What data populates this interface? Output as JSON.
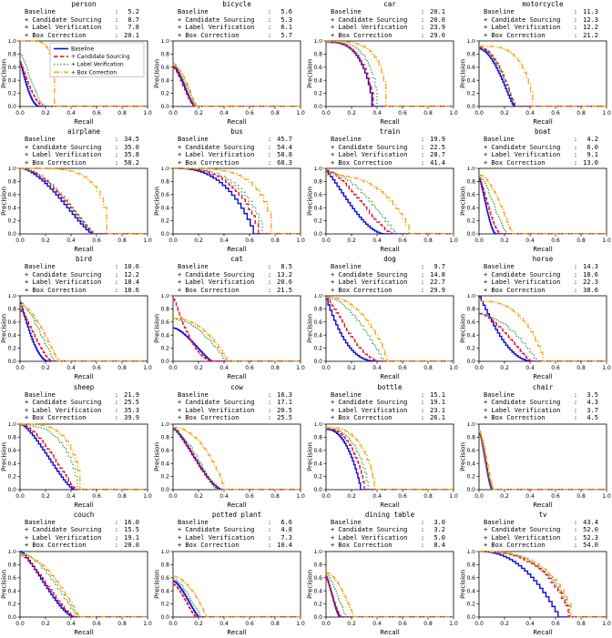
{
  "figure": {
    "xlabel": "Recall",
    "ylabel": "Precision",
    "x_ticks": [
      "0.0",
      "0.2",
      "0.4",
      "0.6",
      "0.8",
      "1.0"
    ],
    "y_ticks": [
      "0.0",
      "0.2",
      "0.4",
      "0.6",
      "0.8",
      "1.0"
    ],
    "xlim": [
      0,
      1
    ],
    "ylim": [
      0,
      1
    ],
    "grid": "off",
    "legend_position": "inside-first-subplot-upper-right"
  },
  "methods": [
    {
      "name": "Baseline",
      "color": "#0b0bd6",
      "dash": "",
      "style": "solid"
    },
    {
      "name": "+ Candidate Sourcing",
      "color": "#e8112d",
      "dash": "4.5,2.5",
      "style": "dashed"
    },
    {
      "name": "+ Label Verification",
      "color": "#259b41",
      "dash": "1.2,2.4",
      "style": "dotted"
    },
    {
      "name": "+ Box Correction",
      "color": "#ffa519",
      "dash": "6,2,1.2,2",
      "style": "dashdot"
    }
  ],
  "chart_data": [
    {
      "type": "line",
      "title": "person",
      "xlabel": "Recall",
      "ylabel": "Precision",
      "xlim": [
        0,
        1
      ],
      "ylim": [
        0,
        1
      ],
      "ap": [
        5.2,
        8.7,
        7.8,
        20.1
      ],
      "curves": [
        [
          0.68,
          0.155,
          1.1,
          2.2
        ],
        [
          0.66,
          0.19,
          1.2,
          2.0
        ],
        [
          0.8,
          0.2,
          1.3,
          1.8
        ],
        [
          1.0,
          0.27,
          6,
          0.45
        ]
      ]
    },
    {
      "type": "line",
      "title": "bicycle",
      "xlabel": "Recall",
      "ylabel": "Precision",
      "xlim": [
        0,
        1
      ],
      "ylim": [
        0,
        1
      ],
      "ap": [
        5.6,
        5.3,
        6.1,
        5.7
      ],
      "curves": [
        [
          0.62,
          0.17,
          1.5,
          1.5
        ],
        [
          0.6,
          0.17,
          1.4,
          1.6
        ],
        [
          0.66,
          0.19,
          1.5,
          1.5
        ],
        [
          0.63,
          0.18,
          1.8,
          1.2
        ]
      ]
    },
    {
      "type": "line",
      "title": "car",
      "xlabel": "Recall",
      "ylabel": "Precision",
      "xlim": [
        0,
        1
      ],
      "ylim": [
        0,
        1
      ],
      "ap": [
        20.1,
        20.0,
        23.9,
        29.0
      ],
      "curves": [
        [
          0.98,
          0.36,
          3,
          0.7
        ],
        [
          0.98,
          0.37,
          3,
          0.7
        ],
        [
          0.98,
          0.4,
          3.5,
          0.6
        ],
        [
          0.99,
          0.47,
          4,
          0.5
        ]
      ]
    },
    {
      "type": "line",
      "title": "motorcycle",
      "xlabel": "Recall",
      "ylabel": "Precision",
      "xlim": [
        0,
        1
      ],
      "ylim": [
        0,
        1
      ],
      "ap": [
        11.3,
        12.3,
        12.2,
        21.2
      ],
      "curves": [
        [
          0.88,
          0.27,
          1.8,
          1.2
        ],
        [
          0.9,
          0.28,
          2,
          1.1
        ],
        [
          0.88,
          0.28,
          2,
          1.1
        ],
        [
          0.92,
          0.42,
          3.5,
          0.7
        ]
      ]
    },
    {
      "type": "line",
      "title": "airplane",
      "xlabel": "Recall",
      "ylabel": "Precision",
      "xlim": [
        0,
        1
      ],
      "ylim": [
        0,
        1
      ],
      "ap": [
        34.5,
        35.0,
        35.8,
        58.2
      ],
      "curves": [
        [
          1.0,
          0.56,
          1.6,
          1.3
        ],
        [
          1.0,
          0.57,
          1.7,
          1.2
        ],
        [
          1.0,
          0.57,
          1.8,
          1.2
        ],
        [
          1.0,
          0.68,
          4.5,
          0.5
        ]
      ]
    },
    {
      "type": "line",
      "title": "bus",
      "xlabel": "Recall",
      "ylabel": "Precision",
      "xlim": [
        0,
        1
      ],
      "ylim": [
        0,
        1
      ],
      "ap": [
        45.7,
        54.4,
        58.8,
        68.3
      ],
      "curves": [
        [
          1.0,
          0.63,
          2.6,
          0.9
        ],
        [
          1.0,
          0.67,
          2.8,
          0.8
        ],
        [
          1.0,
          0.7,
          3.0,
          0.75
        ],
        [
          1.0,
          0.77,
          4.0,
          0.55
        ]
      ]
    },
    {
      "type": "line",
      "title": "train",
      "xlabel": "Recall",
      "ylabel": "Precision",
      "xlim": [
        0,
        1
      ],
      "ylim": [
        0,
        1
      ],
      "ap": [
        19.9,
        22.5,
        28.7,
        41.4
      ],
      "curves": [
        [
          0.95,
          0.45,
          1.2,
          1.8
        ],
        [
          0.97,
          0.52,
          1.5,
          1.5
        ],
        [
          0.95,
          0.55,
          1.8,
          1.2
        ],
        [
          0.9,
          0.65,
          2.5,
          0.8
        ]
      ]
    },
    {
      "type": "line",
      "title": "boat",
      "xlabel": "Recall",
      "ylabel": "Precision",
      "xlim": [
        0,
        1
      ],
      "ylim": [
        0,
        1
      ],
      "ap": [
        4.2,
        6.0,
        9.1,
        13.0
      ],
      "curves": [
        [
          0.85,
          0.13,
          1.3,
          1.8
        ],
        [
          0.85,
          0.17,
          1.3,
          1.8
        ],
        [
          0.88,
          0.22,
          1.5,
          1.5
        ],
        [
          0.9,
          0.26,
          1.8,
          1.2
        ]
      ]
    },
    {
      "type": "line",
      "title": "bird",
      "xlabel": "Recall",
      "ylabel": "Precision",
      "xlim": [
        0,
        1
      ],
      "ylim": [
        0,
        1
      ],
      "ap": [
        10.6,
        12.2,
        18.4,
        18.6
      ],
      "curves": [
        [
          0.9,
          0.22,
          1.1,
          2.0
        ],
        [
          0.78,
          0.25,
          1.3,
          1.6
        ],
        [
          0.9,
          0.28,
          1.5,
          1.4
        ],
        [
          0.86,
          0.3,
          1.7,
          1.2
        ]
      ]
    },
    {
      "type": "line",
      "title": "cat",
      "xlabel": "Recall",
      "ylabel": "Precision",
      "xlim": [
        0,
        1
      ],
      "ylim": [
        0,
        1
      ],
      "ap": [
        8.5,
        13.2,
        20.6,
        21.5
      ],
      "curves": [
        [
          0.51,
          0.3,
          1.5,
          1.3
        ],
        [
          0.95,
          0.33,
          1.1,
          2.3
        ],
        [
          0.64,
          0.41,
          1.8,
          1.0
        ],
        [
          0.66,
          0.42,
          2.0,
          0.9
        ]
      ]
    },
    {
      "type": "line",
      "title": "dog",
      "xlabel": "Recall",
      "ylabel": "Precision",
      "xlim": [
        0,
        1
      ],
      "ylim": [
        0,
        1
      ],
      "ap": [
        9.7,
        14.8,
        22.7,
        29.9
      ],
      "curves": [
        [
          0.95,
          0.4,
          1.0,
          2.5
        ],
        [
          0.98,
          0.42,
          1.2,
          1.9
        ],
        [
          0.97,
          0.45,
          1.8,
          1.1
        ],
        [
          0.98,
          0.48,
          2.2,
          0.9
        ]
      ]
    },
    {
      "type": "line",
      "title": "horse",
      "xlabel": "Recall",
      "ylabel": "Precision",
      "xlim": [
        0,
        1
      ],
      "ylim": [
        0,
        1
      ],
      "ap": [
        14.3,
        18.6,
        22.3,
        38.6
      ],
      "curves": [
        [
          0.98,
          0.42,
          1.1,
          2.2
        ],
        [
          0.73,
          0.4,
          1.5,
          1.2
        ],
        [
          0.72,
          0.45,
          1.8,
          1.0
        ],
        [
          0.92,
          0.5,
          2.5,
          0.8
        ]
      ]
    },
    {
      "type": "line",
      "title": "sheep",
      "xlabel": "Recall",
      "ylabel": "Precision",
      "xlim": [
        0,
        1
      ],
      "ylim": [
        0,
        1
      ],
      "ap": [
        21.9,
        25.5,
        35.3,
        39.9
      ],
      "curves": [
        [
          1.0,
          0.42,
          1.4,
          1.4
        ],
        [
          1.0,
          0.43,
          1.6,
          1.2
        ],
        [
          0.98,
          0.45,
          2.8,
          0.7
        ],
        [
          1.0,
          0.47,
          3.5,
          0.6
        ]
      ]
    },
    {
      "type": "line",
      "title": "cow",
      "xlabel": "Recall",
      "ylabel": "Precision",
      "xlim": [
        0,
        1
      ],
      "ylim": [
        0,
        1
      ],
      "ap": [
        16.3,
        17.1,
        20.5,
        25.5
      ],
      "curves": [
        [
          0.93,
          0.38,
          1.3,
          1.6
        ],
        [
          0.95,
          0.36,
          1.3,
          1.5
        ],
        [
          0.9,
          0.33,
          1.6,
          1.2
        ],
        [
          0.95,
          0.4,
          2.0,
          0.9
        ]
      ]
    },
    {
      "type": "line",
      "title": "bottle",
      "xlabel": "Recall",
      "ylabel": "Precision",
      "xlim": [
        0,
        1
      ],
      "ylim": [
        0,
        1
      ],
      "ap": [
        15.1,
        19.1,
        23.1,
        26.1
      ],
      "curves": [
        [
          0.92,
          0.27,
          2.2,
          0.9
        ],
        [
          0.93,
          0.3,
          2.4,
          0.85
        ],
        [
          0.93,
          0.33,
          2.6,
          0.8
        ],
        [
          0.95,
          0.38,
          2.8,
          0.75
        ]
      ]
    },
    {
      "type": "line",
      "title": "chair",
      "xlabel": "Recall",
      "ylabel": "Precision",
      "xlim": [
        0,
        1
      ],
      "ylim": [
        0,
        1
      ],
      "ap": [
        3.5,
        4.3,
        3.7,
        4.5
      ],
      "curves": [
        [
          0.9,
          0.1,
          1.3,
          1.5
        ],
        [
          0.9,
          0.11,
          1.3,
          1.5
        ],
        [
          0.88,
          0.1,
          1.3,
          1.5
        ],
        [
          0.9,
          0.11,
          1.5,
          1.3
        ]
      ]
    },
    {
      "type": "line",
      "title": "couch",
      "xlabel": "Recall",
      "ylabel": "Precision",
      "xlim": [
        0,
        1
      ],
      "ylim": [
        0,
        1
      ],
      "ap": [
        16.0,
        15.5,
        19.1,
        20.0
      ],
      "curves": [
        [
          1.0,
          0.42,
          1.3,
          1.6
        ],
        [
          0.95,
          0.43,
          1.4,
          1.5
        ],
        [
          0.97,
          0.45,
          1.7,
          1.2
        ],
        [
          0.95,
          0.46,
          1.9,
          1.1
        ]
      ]
    },
    {
      "type": "line",
      "title": "potted plant",
      "xlabel": "Recall",
      "ylabel": "Precision",
      "xlim": [
        0,
        1
      ],
      "ylim": [
        0,
        1
      ],
      "ap": [
        6.6,
        4.8,
        7.3,
        10.4
      ],
      "curves": [
        [
          0.55,
          0.2,
          1.5,
          1.3
        ],
        [
          0.5,
          0.18,
          1.5,
          1.4
        ],
        [
          0.58,
          0.22,
          1.6,
          1.2
        ],
        [
          0.62,
          0.26,
          1.8,
          1.0
        ]
      ]
    },
    {
      "type": "line",
      "title": "dining table",
      "xlabel": "Recall",
      "ylabel": "Precision",
      "xlim": [
        0,
        1
      ],
      "ylim": [
        0,
        1
      ],
      "ap": [
        3.0,
        3.2,
        5.0,
        8.4
      ],
      "curves": [
        [
          0.62,
          0.11,
          1.3,
          1.6
        ],
        [
          0.6,
          0.12,
          1.3,
          1.6
        ],
        [
          0.65,
          0.16,
          1.5,
          1.3
        ],
        [
          0.68,
          0.22,
          1.7,
          1.1
        ]
      ]
    },
    {
      "type": "line",
      "title": "tv",
      "xlabel": "Recall",
      "ylabel": "Precision",
      "xlim": [
        0,
        1
      ],
      "ylim": [
        0,
        1
      ],
      "ap": [
        43.4,
        52.0,
        52.3,
        54.0
      ],
      "curves": [
        [
          1.0,
          0.62,
          2.2,
          1.0
        ],
        [
          1.0,
          0.7,
          2.6,
          0.75
        ],
        [
          1.0,
          0.71,
          2.7,
          0.73
        ],
        [
          1.0,
          0.72,
          2.8,
          0.7
        ]
      ]
    }
  ]
}
